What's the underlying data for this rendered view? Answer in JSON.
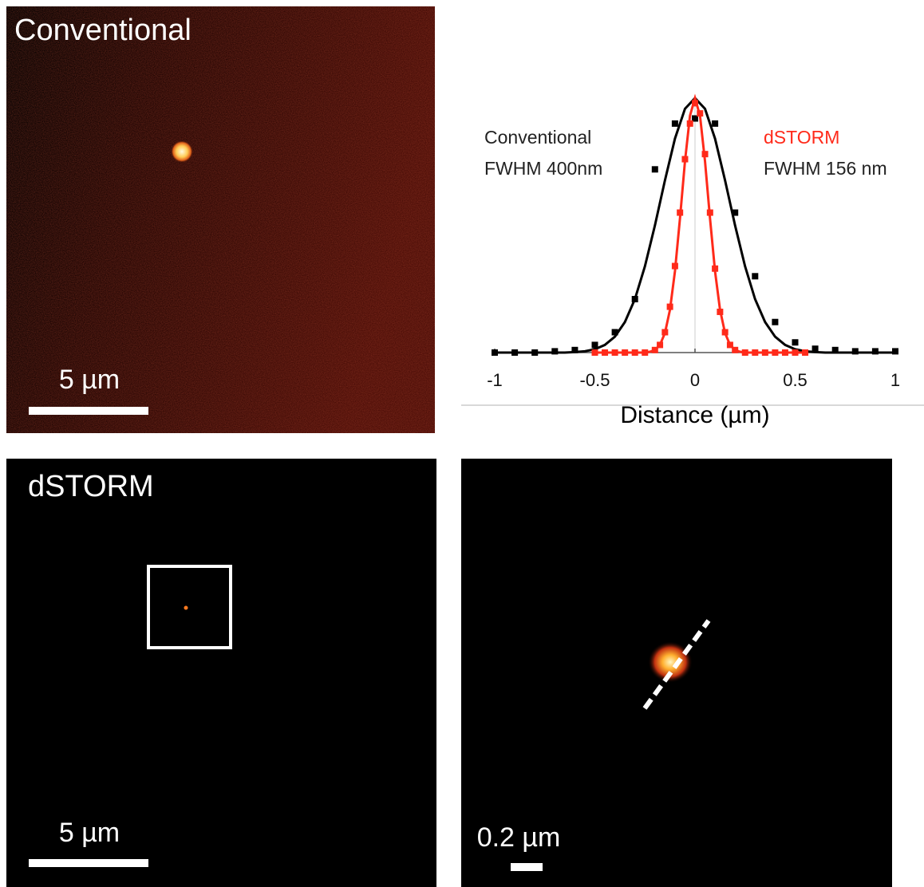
{
  "panels": {
    "conventional_image": {
      "label": "Conventional",
      "scale_bar": "5 µm"
    },
    "dstorm_image": {
      "label": "dSTORM",
      "scale_bar": "5 µm"
    },
    "zoom_image": {
      "scale_bar": "0.2 µm"
    }
  },
  "chart_data": {
    "type": "line",
    "xlabel": "Distance (µm)",
    "xlim": [
      -1,
      1
    ],
    "xticks": [
      -1,
      -0.5,
      0,
      0.5,
      1
    ],
    "ylim": [
      0,
      1
    ],
    "series": [
      {
        "name": "Conventional",
        "label": "FWHM 400nm",
        "color": "#000000",
        "x": [
          -1,
          -0.9,
          -0.8,
          -0.7,
          -0.6,
          -0.5,
          -0.4,
          -0.3,
          -0.2,
          -0.1,
          0,
          0.1,
          0.2,
          0.3,
          0.4,
          0.5,
          0.6,
          0.7,
          0.8,
          0.9,
          1
        ],
        "values": [
          0,
          0,
          0,
          0.005,
          0.01,
          0.03,
          0.08,
          0.21,
          0.72,
          0.9,
          0.92,
          0.9,
          0.55,
          0.3,
          0.12,
          0.04,
          0.015,
          0.01,
          0.005,
          0.005,
          0.005
        ],
        "fit_x": [
          -1,
          -0.95,
          -0.9,
          -0.85,
          -0.8,
          -0.75,
          -0.7,
          -0.65,
          -0.6,
          -0.55,
          -0.5,
          -0.45,
          -0.4,
          -0.35,
          -0.3,
          -0.25,
          -0.2,
          -0.15,
          -0.1,
          -0.05,
          0,
          0.05,
          0.1,
          0.15,
          0.2,
          0.25,
          0.3,
          0.35,
          0.4,
          0.45,
          0.5,
          0.55,
          0.6,
          0.65,
          0.7,
          0.75,
          0.8,
          0.85,
          0.9,
          0.95,
          1
        ],
        "fit_values": [
          0,
          0,
          0,
          0,
          0,
          0,
          0,
          0,
          0.002,
          0.005,
          0.013,
          0.03,
          0.0625,
          0.12,
          0.21,
          0.339,
          0.5,
          0.677,
          0.841,
          0.958,
          1,
          0.958,
          0.841,
          0.677,
          0.5,
          0.339,
          0.21,
          0.12,
          0.0625,
          0.03,
          0.013,
          0.005,
          0.002,
          0,
          0,
          0,
          0,
          0,
          0,
          0,
          0
        ]
      },
      {
        "name": "dSTORM",
        "label": "FWHM 156 nm",
        "color": "#ff2a1a",
        "x": [
          -0.5,
          -0.45,
          -0.4,
          -0.35,
          -0.3,
          -0.25,
          -0.2,
          -0.175,
          -0.15,
          -0.125,
          -0.1,
          -0.075,
          -0.05,
          -0.025,
          0,
          0.025,
          0.05,
          0.075,
          0.1,
          0.125,
          0.15,
          0.175,
          0.2,
          0.25,
          0.3,
          0.35,
          0.4,
          0.45,
          0.5,
          0.55
        ],
        "values": [
          0,
          0,
          0,
          0,
          0,
          0,
          0.01,
          0.03,
          0.08,
          0.18,
          0.34,
          0.55,
          0.76,
          0.9,
          0.98,
          0.94,
          0.78,
          0.55,
          0.33,
          0.16,
          0.08,
          0.03,
          0.01,
          0,
          0,
          0,
          0,
          0,
          0,
          0
        ],
        "fit_x": [
          -0.5,
          -0.25,
          -0.225,
          -0.2,
          -0.175,
          -0.15,
          -0.125,
          -0.1,
          -0.075,
          -0.05,
          -0.025,
          0,
          0.025,
          0.05,
          0.075,
          0.1,
          0.125,
          0.15,
          0.175,
          0.2,
          0.225,
          0.25,
          0.55
        ],
        "fit_values": [
          0,
          0,
          0.003,
          0.01,
          0.03,
          0.077,
          0.168,
          0.32,
          0.527,
          0.752,
          0.931,
          1,
          0.931,
          0.752,
          0.527,
          0.32,
          0.168,
          0.077,
          0.03,
          0.01,
          0.003,
          0,
          0
        ]
      }
    ]
  }
}
